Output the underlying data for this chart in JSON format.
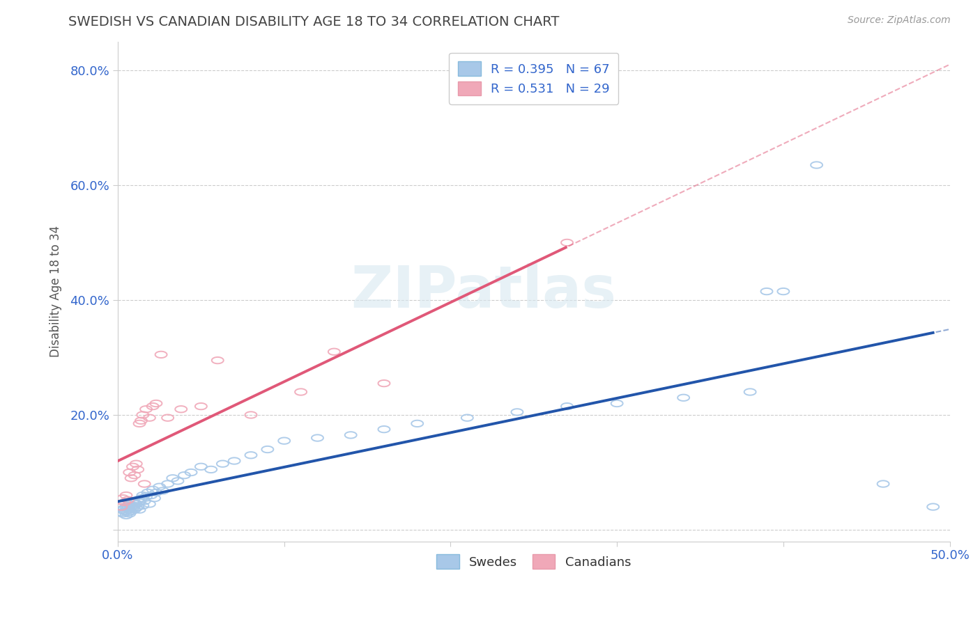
{
  "title": "SWEDISH VS CANADIAN DISABILITY AGE 18 TO 34 CORRELATION CHART",
  "source": "Source: ZipAtlas.com",
  "ylabel": "Disability Age 18 to 34",
  "xlim": [
    0.0,
    0.5
  ],
  "ylim": [
    -0.02,
    0.85
  ],
  "xticks": [
    0.0,
    0.1,
    0.2,
    0.3,
    0.4,
    0.5
  ],
  "xticklabels": [
    "0.0%",
    "",
    "",
    "",
    "",
    "50.0%"
  ],
  "yticks": [
    0.0,
    0.2,
    0.4,
    0.6,
    0.8
  ],
  "yticklabels": [
    "",
    "20.0%",
    "40.0%",
    "60.0%",
    "80.0%"
  ],
  "swedish_R": 0.395,
  "swedish_N": 67,
  "canadian_R": 0.531,
  "canadian_N": 29,
  "swedish_color": "#a8c8e8",
  "canadian_color": "#f0a8b8",
  "swedish_line_color": "#2255aa",
  "canadian_line_color": "#e05878",
  "background_color": "#ffffff",
  "grid_color": "#cccccc",
  "title_color": "#444444",
  "watermark": "ZIPatlas",
  "sw_x": [
    0.002,
    0.003,
    0.003,
    0.004,
    0.004,
    0.005,
    0.005,
    0.005,
    0.006,
    0.006,
    0.006,
    0.007,
    0.007,
    0.007,
    0.008,
    0.008,
    0.009,
    0.009,
    0.01,
    0.01,
    0.01,
    0.011,
    0.011,
    0.012,
    0.012,
    0.013,
    0.013,
    0.014,
    0.015,
    0.015,
    0.016,
    0.017,
    0.018,
    0.019,
    0.02,
    0.021,
    0.022,
    0.023,
    0.025,
    0.027,
    0.03,
    0.033,
    0.036,
    0.04,
    0.044,
    0.05,
    0.056,
    0.063,
    0.07,
    0.08,
    0.09,
    0.1,
    0.12,
    0.14,
    0.16,
    0.18,
    0.21,
    0.24,
    0.27,
    0.3,
    0.34,
    0.38,
    0.39,
    0.4,
    0.42,
    0.46,
    0.49
  ],
  "sw_y": [
    0.03,
    0.028,
    0.035,
    0.032,
    0.038,
    0.033,
    0.04,
    0.025,
    0.03,
    0.042,
    0.038,
    0.035,
    0.028,
    0.045,
    0.04,
    0.032,
    0.038,
    0.05,
    0.035,
    0.042,
    0.048,
    0.038,
    0.045,
    0.04,
    0.052,
    0.048,
    0.035,
    0.055,
    0.042,
    0.06,
    0.05,
    0.058,
    0.065,
    0.045,
    0.06,
    0.07,
    0.055,
    0.065,
    0.075,
    0.068,
    0.08,
    0.09,
    0.085,
    0.095,
    0.1,
    0.11,
    0.105,
    0.115,
    0.12,
    0.13,
    0.14,
    0.155,
    0.16,
    0.165,
    0.175,
    0.185,
    0.195,
    0.205,
    0.215,
    0.22,
    0.23,
    0.24,
    0.415,
    0.415,
    0.635,
    0.08,
    0.04
  ],
  "ca_x": [
    0.002,
    0.003,
    0.004,
    0.005,
    0.006,
    0.007,
    0.008,
    0.009,
    0.01,
    0.011,
    0.012,
    0.013,
    0.014,
    0.015,
    0.016,
    0.017,
    0.019,
    0.021,
    0.023,
    0.026,
    0.03,
    0.038,
    0.05,
    0.06,
    0.08,
    0.11,
    0.13,
    0.16,
    0.27
  ],
  "ca_y": [
    0.04,
    0.055,
    0.048,
    0.06,
    0.052,
    0.1,
    0.09,
    0.11,
    0.095,
    0.115,
    0.105,
    0.185,
    0.19,
    0.2,
    0.08,
    0.21,
    0.195,
    0.215,
    0.22,
    0.305,
    0.195,
    0.21,
    0.215,
    0.295,
    0.2,
    0.24,
    0.31,
    0.255,
    0.5
  ]
}
